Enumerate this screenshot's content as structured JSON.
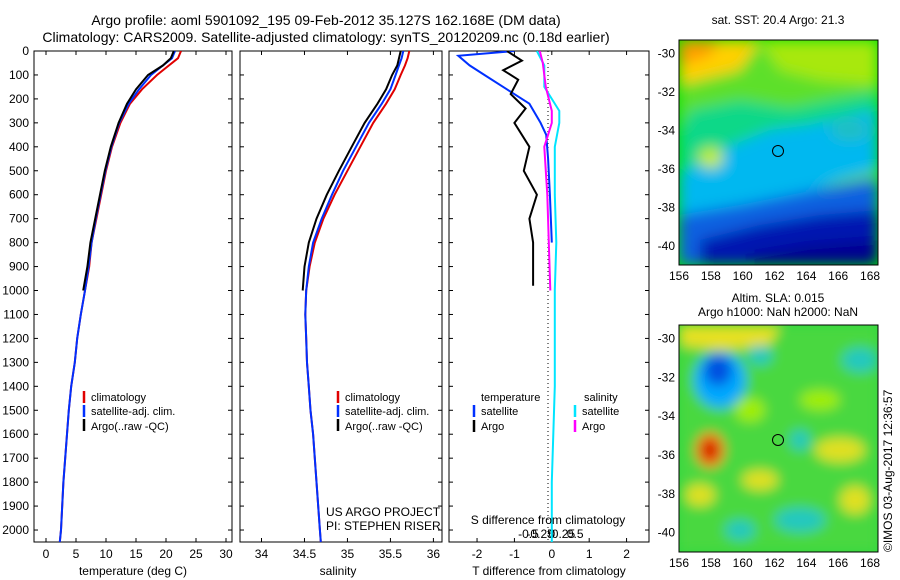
{
  "title_line1": "Argo profile: aoml 5901092_195 09-Feb-2012 35.127S 162.168E (DM data)",
  "title_line2": "Climatology: CARS2009. Satellite-adjusted climatology: synTS_20120209.nc (0.18d earlier)",
  "legend": {
    "climatology": "climatology",
    "satellite": "satellite-adj. clim.",
    "argo": "Argo(..raw -QC)"
  },
  "diff_legend": {
    "temperature": "temperature",
    "salinity": "salinity",
    "satellite": "satellite",
    "argo": "Argo"
  },
  "project_line1": "US ARGO PROJECT",
  "project_line2": "PI: STEPHEN RISER",
  "s_diff_label": "S difference from climatology",
  "t_diff_label": "T difference from climatology",
  "imos_label": "©IMOS 03-Aug-2017 12:36:57",
  "map1_title": "sat. SST: 20.4 Argo: 21.3",
  "map2_title1": "Altim. SLA: 0.015",
  "map2_title2": "Argo h1000: NaN h2000: NaN",
  "chart_data": [
    {
      "type": "line",
      "xlabel": "temperature (deg C)",
      "ylabel": "",
      "xlim": [
        -2,
        31
      ],
      "ylim": [
        2050,
        0
      ],
      "xticks": [
        0,
        5,
        10,
        15,
        20,
        25,
        30
      ],
      "yticks": [
        0,
        100,
        200,
        300,
        400,
        500,
        600,
        700,
        800,
        900,
        1000,
        1100,
        1200,
        1300,
        1400,
        1500,
        1600,
        1700,
        1800,
        1900,
        2000
      ],
      "series": [
        {
          "name": "climatology",
          "color": "#e00000",
          "x": [
            22.5,
            22,
            20.5,
            18.5,
            16,
            14,
            12.4,
            11,
            10,
            9.2,
            8.4,
            7.6,
            7.2,
            6.5,
            5.8,
            5.2,
            4.8,
            4.2,
            3.8,
            3.5,
            3.2,
            2.9,
            2.7,
            2.5,
            2.3
          ],
          "y": [
            0,
            30,
            60,
            100,
            160,
            220,
            300,
            400,
            500,
            600,
            700,
            800,
            900,
            1000,
            1100,
            1200,
            1300,
            1400,
            1500,
            1600,
            1700,
            1800,
            1900,
            2000,
            2050
          ]
        },
        {
          "name": "satellite-adj. clim.",
          "color": "#0030ff",
          "x": [
            21.5,
            21,
            19.5,
            17.5,
            15.5,
            13.8,
            12.2,
            10.9,
            9.9,
            9.1,
            8.3,
            7.6,
            7.1,
            6.5,
            5.8,
            5.2,
            4.8,
            4.2,
            3.8,
            3.5,
            3.2,
            2.9,
            2.7,
            2.5,
            2.3
          ],
          "y": [
            0,
            30,
            60,
            100,
            160,
            220,
            300,
            400,
            500,
            600,
            700,
            800,
            900,
            1000,
            1100,
            1200,
            1300,
            1400,
            1500,
            1600,
            1700,
            1800,
            1900,
            2000,
            2050
          ]
        },
        {
          "name": "Argo(..raw -QC)",
          "color": "#000000",
          "x": [
            21.3,
            20.8,
            19.5,
            17,
            15,
            13.5,
            12.1,
            10.8,
            9.8,
            9,
            8.2,
            7.4,
            6.9,
            6.2
          ],
          "y": [
            0,
            30,
            60,
            100,
            160,
            220,
            300,
            400,
            500,
            600,
            700,
            800,
            900,
            1000
          ]
        }
      ]
    },
    {
      "type": "line",
      "xlabel": "salinity",
      "ylabel": "",
      "xlim": [
        33.75,
        36.1
      ],
      "ylim": [
        2050,
        0
      ],
      "xticks": [
        34,
        34.5,
        35,
        35.5,
        36
      ],
      "series": [
        {
          "name": "climatology",
          "color": "#e00000",
          "x": [
            35.72,
            35.7,
            35.67,
            35.62,
            35.55,
            35.45,
            35.3,
            35.15,
            35.0,
            34.85,
            34.72,
            34.62,
            34.56,
            34.52,
            34.51,
            34.52,
            34.53,
            34.55,
            34.57,
            34.6,
            34.62,
            34.64,
            34.66,
            34.68,
            34.69
          ],
          "y": [
            0,
            30,
            60,
            100,
            160,
            220,
            300,
            400,
            500,
            600,
            700,
            800,
            900,
            1000,
            1100,
            1200,
            1300,
            1400,
            1500,
            1600,
            1700,
            1800,
            1900,
            2000,
            2050
          ]
        },
        {
          "name": "satellite-adj. clim.",
          "color": "#0030ff",
          "x": [
            35.65,
            35.63,
            35.6,
            35.56,
            35.5,
            35.4,
            35.25,
            35.1,
            34.95,
            34.82,
            34.7,
            34.6,
            34.55,
            34.52,
            34.51,
            34.52,
            34.53,
            34.55,
            34.57,
            34.6,
            34.62,
            34.64,
            34.66,
            34.68,
            34.69
          ],
          "y": [
            0,
            30,
            60,
            100,
            160,
            220,
            300,
            400,
            500,
            600,
            700,
            800,
            900,
            1000,
            1100,
            1200,
            1300,
            1400,
            1500,
            1600,
            1700,
            1800,
            1900,
            2000,
            2050
          ]
        },
        {
          "name": "Argo(..raw -QC)",
          "color": "#000000",
          "x": [
            35.62,
            35.6,
            35.58,
            35.52,
            35.45,
            35.35,
            35.2,
            35.05,
            34.9,
            34.76,
            34.64,
            34.55,
            34.5,
            34.48
          ],
          "y": [
            0,
            30,
            60,
            100,
            160,
            220,
            300,
            400,
            500,
            600,
            700,
            800,
            900,
            1000
          ]
        }
      ]
    },
    {
      "type": "line",
      "xlabel": "T difference from climatology",
      "xlabel_top": "S difference from climatology",
      "xlim": [
        -2.75,
        2.6
      ],
      "ylim": [
        2050,
        0
      ],
      "xticks_T": [
        -2,
        -1,
        0,
        1,
        2
      ],
      "xticks_S": [
        -0.5,
        -0.25,
        0,
        0.25,
        0.5
      ],
      "series": [
        {
          "name": "temperature satellite",
          "color": "#0030ff",
          "x": [
            -1,
            -2.5,
            -2.2,
            -1.8,
            -1.2,
            -0.6,
            -0.3,
            -0.15,
            -0.1,
            -0.05,
            0
          ],
          "y": [
            0,
            20,
            60,
            100,
            160,
            220,
            300,
            350,
            450,
            600,
            800
          ]
        },
        {
          "name": "temperature Argo",
          "color": "#000000",
          "x": [
            -1.2,
            -0.8,
            -1.3,
            -0.9,
            -1.1,
            -0.7,
            -1.0,
            -0.6,
            -0.75,
            -0.4,
            -0.6,
            -0.5,
            -0.5
          ],
          "y": [
            0,
            40,
            80,
            120,
            180,
            240,
            300,
            400,
            500,
            600,
            700,
            800,
            980
          ]
        },
        {
          "name": "salinity satellite",
          "color": "#00e5ff",
          "x": [
            -0.1,
            -0.05,
            -0.05,
            0.05,
            0.05,
            0.02,
            0.02,
            0.03,
            0.02,
            0.02,
            0.0,
            0.0
          ],
          "y": [
            0,
            60,
            150,
            250,
            300,
            400,
            600,
            800,
            1000,
            1400,
            1800,
            2050
          ]
        },
        {
          "name": "salinity Argo",
          "color": "#ff00ff",
          "x": [
            -0.08,
            -0.06,
            -0.04,
            0.0,
            0.0,
            -0.05,
            -0.04,
            -0.03,
            -0.02,
            -0.01
          ],
          "y": [
            0,
            50,
            150,
            250,
            300,
            400,
            500,
            600,
            800,
            1000
          ]
        }
      ]
    },
    {
      "type": "heatmap",
      "title": "sat. SST: 20.4 Argo: 21.3",
      "xlim": [
        156,
        168.5
      ],
      "ylim": [
        -41,
        -29.3
      ],
      "xticks": [
        156,
        158,
        160,
        162,
        164,
        166,
        168
      ],
      "yticks": [
        -30,
        -32,
        -34,
        -36,
        -38,
        -40
      ],
      "marker": {
        "lon": 162.17,
        "lat": -35.13
      }
    },
    {
      "type": "heatmap",
      "title": "Altim. SLA: 0.015 / Argo h1000: NaN h2000: NaN",
      "xlim": [
        156,
        168.5
      ],
      "ylim": [
        -41,
        -29.3
      ],
      "xticks": [
        156,
        158,
        160,
        162,
        164,
        166,
        168
      ],
      "yticks": [
        -30,
        -32,
        -34,
        -36,
        -38,
        -40
      ],
      "marker": {
        "lon": 162.17,
        "lat": -35.13
      }
    }
  ]
}
